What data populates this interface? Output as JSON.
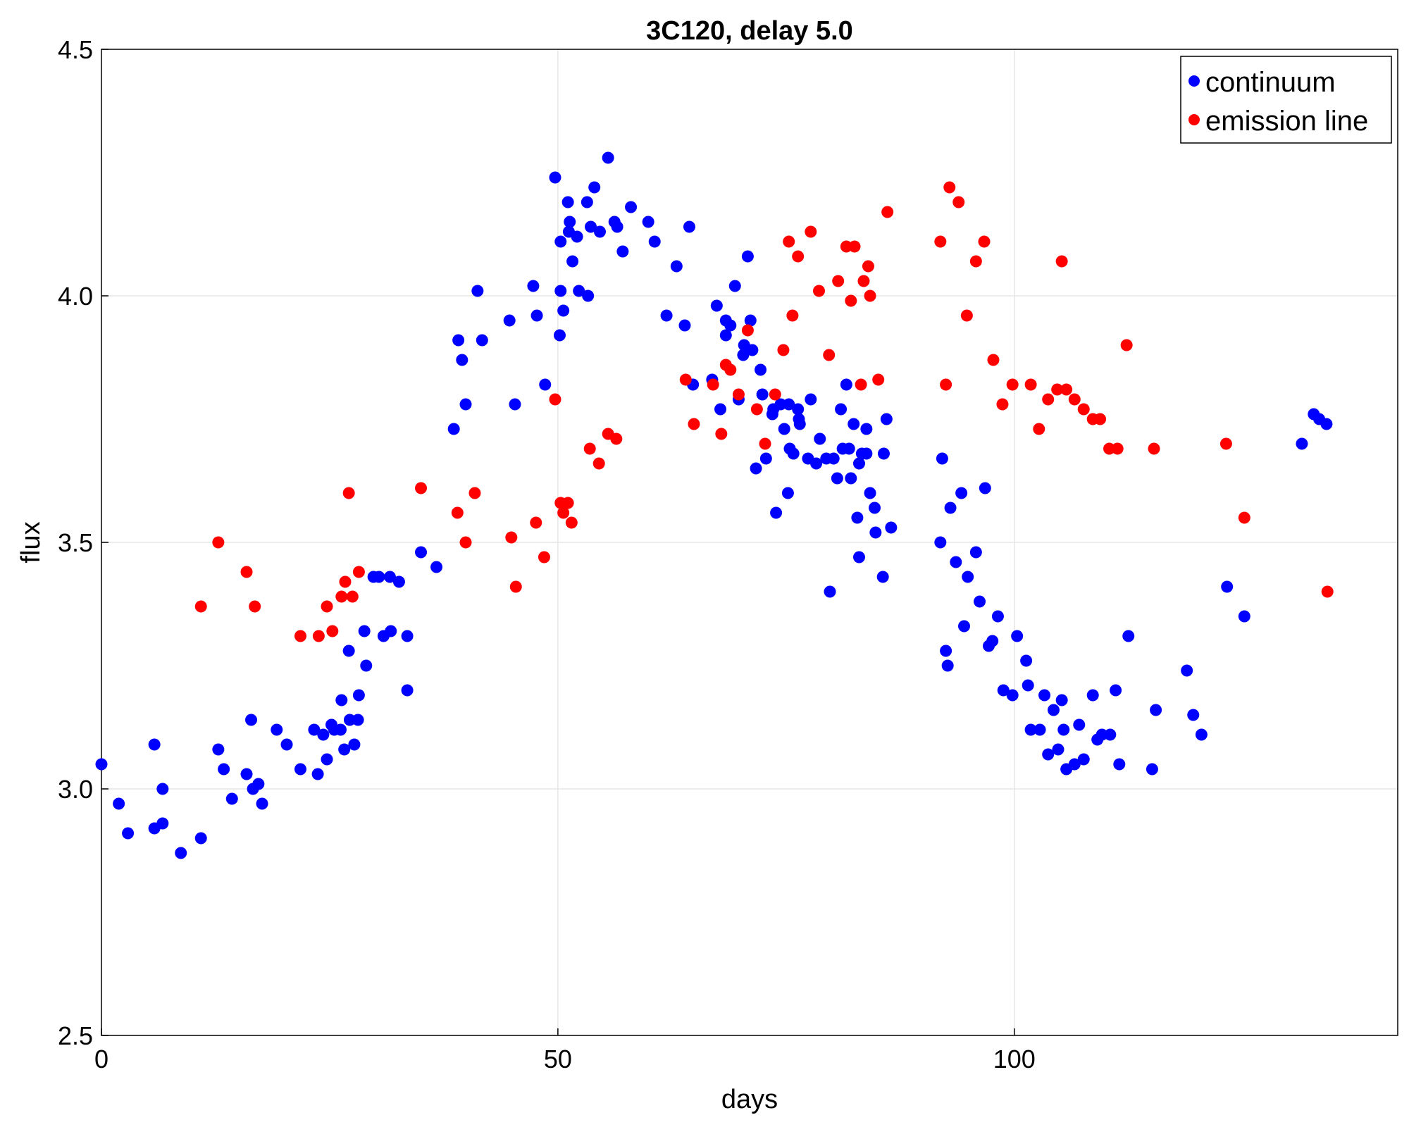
{
  "chart_data": {
    "type": "scatter",
    "title": "3C120, delay 5.0",
    "xlabel": "days",
    "ylabel": "flux",
    "xlim": [
      0,
      142
    ],
    "ylim": [
      2.5,
      4.5
    ],
    "x_ticks": [
      0,
      50,
      100
    ],
    "x_tick_labels": [
      "0",
      "50",
      "100"
    ],
    "y_ticks": [
      2.5,
      3.0,
      3.5,
      4.0,
      4.5
    ],
    "y_tick_labels": [
      "2.5",
      "3.0",
      "3.5",
      "4.0",
      "4.5"
    ],
    "grid": true,
    "legend_position": "top-right",
    "series": [
      {
        "name": "continuum",
        "color": "#0000ff",
        "points": [
          [
            0.0,
            3.05
          ],
          [
            1.9,
            2.97
          ],
          [
            2.9,
            2.91
          ],
          [
            5.8,
            3.09
          ],
          [
            5.8,
            2.92
          ],
          [
            6.7,
            2.93
          ],
          [
            6.7,
            3.0
          ],
          [
            8.7,
            2.87
          ],
          [
            10.9,
            2.9
          ],
          [
            12.8,
            3.08
          ],
          [
            13.4,
            3.04
          ],
          [
            14.3,
            2.98
          ],
          [
            15.9,
            3.03
          ],
          [
            16.4,
            3.14
          ],
          [
            16.6,
            3.0
          ],
          [
            17.2,
            3.01
          ],
          [
            17.6,
            2.97
          ],
          [
            19.2,
            3.12
          ],
          [
            20.3,
            3.09
          ],
          [
            21.8,
            3.04
          ],
          [
            23.3,
            3.12
          ],
          [
            23.7,
            3.03
          ],
          [
            24.3,
            3.11
          ],
          [
            24.7,
            3.06
          ],
          [
            25.2,
            3.13
          ],
          [
            25.5,
            3.12
          ],
          [
            26.2,
            3.12
          ],
          [
            26.3,
            3.18
          ],
          [
            26.6,
            3.08
          ],
          [
            27.1,
            3.28
          ],
          [
            27.2,
            3.14
          ],
          [
            27.7,
            3.09
          ],
          [
            28.1,
            3.14
          ],
          [
            28.2,
            3.19
          ],
          [
            28.8,
            3.32
          ],
          [
            29.0,
            3.25
          ],
          [
            29.8,
            3.43
          ],
          [
            30.4,
            3.43
          ],
          [
            30.9,
            3.31
          ],
          [
            31.6,
            3.43
          ],
          [
            31.7,
            3.32
          ],
          [
            32.6,
            3.42
          ],
          [
            33.5,
            3.31
          ],
          [
            33.5,
            3.2
          ],
          [
            35.0,
            3.48
          ],
          [
            36.7,
            3.45
          ],
          [
            38.6,
            3.73
          ],
          [
            39.1,
            3.91
          ],
          [
            39.5,
            3.87
          ],
          [
            39.9,
            3.78
          ],
          [
            41.2,
            4.01
          ],
          [
            41.7,
            3.91
          ],
          [
            44.7,
            3.95
          ],
          [
            45.3,
            3.78
          ],
          [
            47.3,
            4.02
          ],
          [
            47.7,
            3.96
          ],
          [
            48.6,
            3.82
          ],
          [
            49.7,
            4.24
          ],
          [
            50.2,
            3.92
          ],
          [
            50.3,
            4.01
          ],
          [
            50.3,
            4.11
          ],
          [
            50.6,
            3.97
          ],
          [
            51.1,
            4.19
          ],
          [
            51.2,
            4.13
          ],
          [
            51.3,
            4.15
          ],
          [
            51.6,
            4.07
          ],
          [
            52.1,
            4.12
          ],
          [
            52.3,
            4.01
          ],
          [
            53.2,
            4.19
          ],
          [
            53.3,
            4.0
          ],
          [
            53.6,
            4.14
          ],
          [
            54.0,
            4.22
          ],
          [
            54.6,
            4.13
          ],
          [
            55.5,
            4.28
          ],
          [
            56.2,
            4.15
          ],
          [
            56.5,
            4.14
          ],
          [
            57.1,
            4.09
          ],
          [
            58.0,
            4.18
          ],
          [
            59.9,
            4.15
          ],
          [
            60.6,
            4.11
          ],
          [
            61.9,
            3.96
          ],
          [
            63.0,
            4.06
          ],
          [
            63.9,
            3.94
          ],
          [
            64.4,
            4.14
          ],
          [
            64.8,
            3.82
          ],
          [
            66.9,
            3.83
          ],
          [
            67.4,
            3.98
          ],
          [
            67.8,
            3.77
          ],
          [
            68.4,
            3.92
          ],
          [
            68.4,
            3.95
          ],
          [
            68.9,
            3.94
          ],
          [
            69.4,
            4.02
          ],
          [
            69.8,
            3.79
          ],
          [
            70.3,
            3.88
          ],
          [
            70.4,
            3.9
          ],
          [
            70.8,
            4.08
          ],
          [
            71.1,
            3.95
          ],
          [
            71.3,
            3.89
          ],
          [
            71.7,
            3.65
          ],
          [
            72.2,
            3.85
          ],
          [
            72.4,
            3.8
          ],
          [
            72.8,
            3.67
          ],
          [
            73.5,
            3.76
          ],
          [
            73.6,
            3.77
          ],
          [
            73.9,
            3.56
          ],
          [
            74.4,
            3.78
          ],
          [
            74.8,
            3.73
          ],
          [
            75.2,
            3.6
          ],
          [
            75.3,
            3.78
          ],
          [
            75.4,
            3.69
          ],
          [
            75.8,
            3.68
          ],
          [
            76.3,
            3.77
          ],
          [
            76.4,
            3.75
          ],
          [
            76.5,
            3.74
          ],
          [
            77.4,
            3.67
          ],
          [
            77.7,
            3.79
          ],
          [
            78.3,
            3.66
          ],
          [
            78.7,
            3.71
          ],
          [
            79.4,
            3.67
          ],
          [
            79.8,
            3.4
          ],
          [
            80.2,
            3.67
          ],
          [
            80.6,
            3.63
          ],
          [
            81.0,
            3.77
          ],
          [
            81.2,
            3.69
          ],
          [
            81.6,
            3.82
          ],
          [
            81.9,
            3.69
          ],
          [
            82.1,
            3.63
          ],
          [
            82.4,
            3.74
          ],
          [
            82.8,
            3.55
          ],
          [
            83.0,
            3.66
          ],
          [
            83.0,
            3.47
          ],
          [
            83.3,
            3.68
          ],
          [
            83.8,
            3.73
          ],
          [
            83.8,
            3.68
          ],
          [
            84.2,
            3.6
          ],
          [
            84.7,
            3.57
          ],
          [
            84.8,
            3.52
          ],
          [
            85.6,
            3.43
          ],
          [
            85.7,
            3.68
          ],
          [
            86.0,
            3.75
          ],
          [
            86.5,
            3.53
          ],
          [
            91.9,
            3.5
          ],
          [
            92.1,
            3.67
          ],
          [
            92.5,
            3.28
          ],
          [
            92.7,
            3.25
          ],
          [
            93.0,
            3.57
          ],
          [
            93.6,
            3.46
          ],
          [
            94.2,
            3.6
          ],
          [
            94.5,
            3.33
          ],
          [
            94.9,
            3.43
          ],
          [
            95.8,
            3.48
          ],
          [
            96.2,
            3.38
          ],
          [
            96.8,
            3.61
          ],
          [
            97.2,
            3.29
          ],
          [
            97.6,
            3.3
          ],
          [
            98.2,
            3.35
          ],
          [
            98.8,
            3.2
          ],
          [
            99.8,
            3.19
          ],
          [
            100.3,
            3.31
          ],
          [
            101.3,
            3.26
          ],
          [
            101.5,
            3.21
          ],
          [
            101.8,
            3.12
          ],
          [
            102.8,
            3.12
          ],
          [
            103.3,
            3.19
          ],
          [
            103.7,
            3.07
          ],
          [
            104.3,
            3.16
          ],
          [
            104.8,
            3.08
          ],
          [
            105.2,
            3.18
          ],
          [
            105.4,
            3.12
          ],
          [
            105.7,
            3.04
          ],
          [
            106.6,
            3.05
          ],
          [
            107.1,
            3.13
          ],
          [
            107.6,
            3.06
          ],
          [
            108.6,
            3.19
          ],
          [
            109.1,
            3.1
          ],
          [
            109.6,
            3.11
          ],
          [
            110.5,
            3.11
          ],
          [
            111.1,
            3.2
          ],
          [
            111.5,
            3.05
          ],
          [
            112.5,
            3.31
          ],
          [
            115.1,
            3.04
          ],
          [
            115.5,
            3.16
          ],
          [
            118.9,
            3.24
          ],
          [
            119.6,
            3.15
          ],
          [
            120.5,
            3.11
          ],
          [
            123.3,
            3.41
          ],
          [
            125.2,
            3.35
          ],
          [
            131.5,
            3.7
          ],
          [
            132.8,
            3.76
          ],
          [
            133.4,
            3.75
          ],
          [
            134.2,
            3.74
          ]
        ]
      },
      {
        "name": "emission line",
        "color": "#ff0000",
        "points": [
          [
            10.9,
            3.37
          ],
          [
            12.8,
            3.5
          ],
          [
            15.9,
            3.44
          ],
          [
            16.8,
            3.37
          ],
          [
            21.8,
            3.31
          ],
          [
            23.8,
            3.31
          ],
          [
            24.7,
            3.37
          ],
          [
            25.3,
            3.32
          ],
          [
            26.3,
            3.39
          ],
          [
            26.7,
            3.42
          ],
          [
            27.1,
            3.6
          ],
          [
            27.5,
            3.39
          ],
          [
            28.2,
            3.44
          ],
          [
            35.0,
            3.61
          ],
          [
            39.0,
            3.56
          ],
          [
            39.9,
            3.5
          ],
          [
            40.9,
            3.6
          ],
          [
            44.9,
            3.51
          ],
          [
            45.4,
            3.41
          ],
          [
            47.6,
            3.54
          ],
          [
            48.5,
            3.47
          ],
          [
            49.7,
            3.79
          ],
          [
            50.3,
            3.58
          ],
          [
            50.6,
            3.56
          ],
          [
            51.1,
            3.58
          ],
          [
            51.5,
            3.54
          ],
          [
            53.5,
            3.69
          ],
          [
            54.5,
            3.66
          ],
          [
            55.5,
            3.72
          ],
          [
            56.4,
            3.71
          ],
          [
            64.0,
            3.83
          ],
          [
            64.9,
            3.74
          ],
          [
            67.0,
            3.82
          ],
          [
            67.9,
            3.72
          ],
          [
            68.4,
            3.86
          ],
          [
            68.9,
            3.85
          ],
          [
            69.8,
            3.8
          ],
          [
            70.8,
            3.93
          ],
          [
            71.8,
            3.77
          ],
          [
            72.7,
            3.7
          ],
          [
            73.8,
            3.8
          ],
          [
            74.7,
            3.89
          ],
          [
            75.3,
            4.11
          ],
          [
            75.7,
            3.96
          ],
          [
            76.3,
            4.08
          ],
          [
            77.7,
            4.13
          ],
          [
            78.6,
            4.01
          ],
          [
            79.7,
            3.88
          ],
          [
            80.7,
            4.03
          ],
          [
            81.6,
            4.1
          ],
          [
            82.1,
            3.99
          ],
          [
            82.5,
            4.1
          ],
          [
            83.2,
            3.82
          ],
          [
            83.5,
            4.03
          ],
          [
            84.0,
            4.06
          ],
          [
            84.2,
            4.0
          ],
          [
            85.1,
            3.83
          ],
          [
            86.1,
            4.17
          ],
          [
            91.9,
            4.11
          ],
          [
            92.5,
            3.82
          ],
          [
            92.9,
            4.22
          ],
          [
            93.9,
            4.19
          ],
          [
            94.8,
            3.96
          ],
          [
            95.8,
            4.07
          ],
          [
            96.7,
            4.11
          ],
          [
            97.7,
            3.87
          ],
          [
            98.7,
            3.78
          ],
          [
            99.8,
            3.82
          ],
          [
            101.8,
            3.82
          ],
          [
            102.7,
            3.73
          ],
          [
            103.7,
            3.79
          ],
          [
            104.7,
            3.81
          ],
          [
            105.2,
            4.07
          ],
          [
            105.7,
            3.81
          ],
          [
            106.6,
            3.79
          ],
          [
            107.6,
            3.77
          ],
          [
            108.6,
            3.75
          ],
          [
            109.4,
            3.75
          ],
          [
            110.4,
            3.69
          ],
          [
            111.3,
            3.69
          ],
          [
            112.3,
            3.9
          ],
          [
            115.3,
            3.69
          ],
          [
            123.2,
            3.7
          ],
          [
            125.2,
            3.55
          ],
          [
            134.3,
            3.4
          ]
        ]
      }
    ]
  }
}
